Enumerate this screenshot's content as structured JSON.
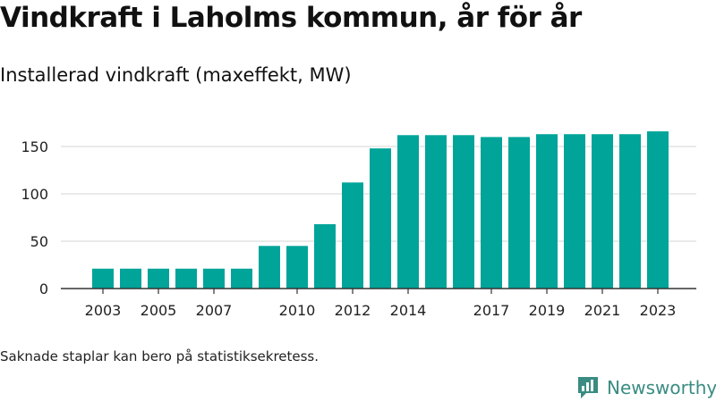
{
  "header": {
    "title": "Vindkraft i Laholms kommun, år för år",
    "subtitle": "Installerad vindkraft (maxeffekt, MW)"
  },
  "footer": {
    "note": "Saknade staplar kan bero på statistiksekretess.",
    "brand": "Newsworthy"
  },
  "colors": {
    "bar": "#00a499",
    "axis": "#333333",
    "grid": "#dddddd",
    "brand": "#3a8c82"
  },
  "chart_data": {
    "type": "bar",
    "title": "Vindkraft i Laholms kommun, år för år",
    "subtitle": "Installerad vindkraft (maxeffekt, MW)",
    "xlabel": "",
    "ylabel": "",
    "ylim": [
      0,
      175
    ],
    "yticks": [
      0,
      50,
      100,
      150
    ],
    "grid": true,
    "legend": "none",
    "x_tick_labels": [
      "2003",
      "2005",
      "2007",
      "2010",
      "2012",
      "2014",
      "2017",
      "2019",
      "2021",
      "2023"
    ],
    "categories": [
      "2003",
      "2004",
      "2005",
      "2006",
      "2007",
      "2008",
      "2009",
      "2010",
      "2011",
      "2012",
      "2013",
      "2014",
      "2015",
      "2016",
      "2017",
      "2018",
      "2019",
      "2020",
      "2021",
      "2022",
      "2023"
    ],
    "values": [
      21,
      21,
      21,
      21,
      21,
      21,
      45,
      45,
      68,
      112,
      148,
      162,
      162,
      162,
      160,
      160,
      163,
      163,
      163,
      163,
      166
    ]
  }
}
